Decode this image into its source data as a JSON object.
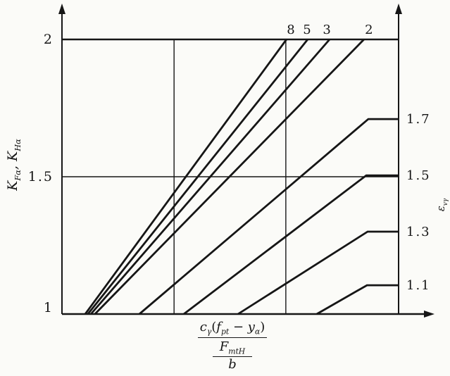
{
  "figure": {
    "background": "#fbfbf8",
    "ink": "#161616",
    "description": "Load-distribution factor chart: K_Fa / K_Ha versus c_gamma(f_pt - y_alpha)/(F_mtH/b) for curves of virtual total contact ratio eps_v_gamma"
  },
  "axis_titles": {
    "left": {
      "k1": "K",
      "k1_sub": "Fα",
      "sep": ", ",
      "k2": "K",
      "k2_sub": "Hα"
    },
    "right": {
      "sym": "ε",
      "sub": "vγ"
    },
    "x_num": {
      "c": "c",
      "c_sub": "γ",
      "open": "(",
      "f": "f",
      "f_sub": "pt",
      "minus": " − ",
      "y": "y",
      "y_sub": "α",
      "close": ")"
    },
    "x_den": {
      "F": "F",
      "F_sub": "mtH",
      "b": "b"
    }
  },
  "chart_data": {
    "type": "line",
    "title": "",
    "xlabel": "cγ(fpt − yα) / (FmtH / b)",
    "ylabel_left": "KFα , KHα",
    "ylabel_right": "εvγ",
    "x_range_normalized": [
      0,
      1
    ],
    "y_range": [
      1,
      2
    ],
    "grid": {
      "vertical_t": [
        0.333,
        0.665
      ],
      "horizontal_K": [
        1.5,
        2
      ]
    },
    "left_ticks": [
      {
        "K": 2,
        "label": "2",
        "dy": 0
      },
      {
        "K": 1.5,
        "label": "1.5",
        "dy": 0
      },
      {
        "K": 1,
        "label": "1",
        "dy": -9
      }
    ],
    "series": [
      {
        "name": "eps-8",
        "curve_label": "8",
        "label_side": "top",
        "label_t": 0.682,
        "points": [
          [
            0.069,
            1
          ],
          [
            0.667,
            2
          ]
        ]
      },
      {
        "name": "eps-5",
        "curve_label": "5",
        "label_side": "top",
        "label_t": 0.73,
        "points": [
          [
            0.077,
            1
          ],
          [
            0.73,
            2
          ]
        ]
      },
      {
        "name": "eps-3",
        "curve_label": "3",
        "label_side": "top",
        "label_t": 0.789,
        "points": [
          [
            0.086,
            1
          ],
          [
            0.795,
            2
          ]
        ]
      },
      {
        "name": "eps-2",
        "curve_label": "2",
        "label_side": "top",
        "label_t": 0.914,
        "points": [
          [
            0.098,
            1
          ],
          [
            0.897,
            2
          ]
        ]
      },
      {
        "name": "eps-1p7",
        "curve_label": "1.7",
        "label_side": "right",
        "points": [
          [
            0.23,
            1
          ],
          [
            0.91,
            1.71
          ],
          [
            1,
            1.71
          ]
        ]
      },
      {
        "name": "eps-1p5",
        "curve_label": "1.5",
        "label_side": "right",
        "points": [
          [
            0.362,
            1
          ],
          [
            0.904,
            1.505
          ],
          [
            1,
            1.505
          ]
        ]
      },
      {
        "name": "eps-1p3",
        "curve_label": "1.3",
        "label_side": "right",
        "points": [
          [
            0.523,
            1
          ],
          [
            0.908,
            1.3
          ],
          [
            1,
            1.3
          ]
        ]
      },
      {
        "name": "eps-1p1",
        "curve_label": "1.1",
        "label_side": "right",
        "points": [
          [
            0.757,
            1
          ],
          [
            0.906,
            1.105
          ],
          [
            1,
            1.105
          ]
        ]
      }
    ]
  }
}
